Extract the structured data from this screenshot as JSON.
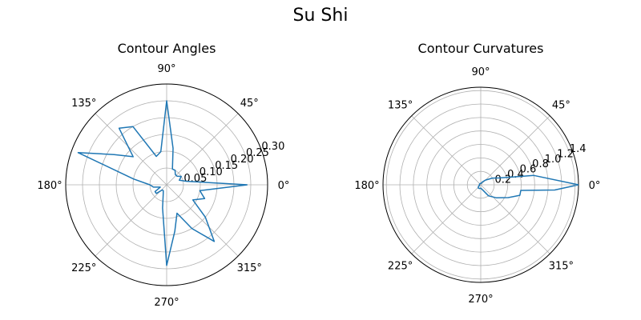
{
  "figure": {
    "suptitle": "Su Shi"
  },
  "chart_data": [
    {
      "type": "line",
      "projection": "polar",
      "title": "Contour Angles",
      "theta_unit": "degrees",
      "theta_tick_labels": [
        "0°",
        "45°",
        "90°",
        "135°",
        "180°",
        "225°",
        "270°",
        "315°"
      ],
      "theta_ticks": [
        0,
        45,
        90,
        135,
        180,
        225,
        270,
        315
      ],
      "r_ticks": [
        0.05,
        0.1,
        0.15,
        0.2,
        0.25,
        0.3
      ],
      "r_tick_labels": [
        "0.05",
        "0.10",
        "0.15",
        "0.20",
        "0.25",
        "0.30"
      ],
      "rlim": [
        0,
        0.3
      ],
      "r_label_angle": 22.5,
      "grid": true,
      "series": [
        {
          "color": "#1f77b4",
          "theta": [
            0,
            10,
            20,
            30,
            40,
            50,
            60,
            70,
            80,
            90,
            100,
            110,
            120,
            130,
            140,
            150,
            160,
            170,
            180,
            190,
            200,
            210,
            220,
            230,
            240,
            250,
            260,
            270,
            280,
            290,
            300,
            310,
            320,
            330,
            340,
            350,
            360
          ],
          "r": [
            0.24,
            0.06,
            0.04,
            0.05,
            0.04,
            0.04,
            0.05,
            0.05,
            0.11,
            0.25,
            0.1,
            0.09,
            0.2,
            0.22,
            0.13,
            0.18,
            0.28,
            0.1,
            0.05,
            0.04,
            0.02,
            0.04,
            0.04,
            0.02,
            0.02,
            0.03,
            0.07,
            0.24,
            0.14,
            0.09,
            0.15,
            0.22,
            0.15,
            0.09,
            0.12,
            0.1,
            0.24
          ]
        }
      ]
    },
    {
      "type": "line",
      "projection": "polar",
      "title": "Contour Curvatures",
      "theta_unit": "degrees",
      "theta_tick_labels": [
        "0°",
        "45°",
        "90°",
        "135°",
        "180°",
        "225°",
        "270°",
        "315°"
      ],
      "theta_ticks": [
        0,
        45,
        90,
        135,
        180,
        225,
        270,
        315
      ],
      "r_ticks": [
        0.2,
        0.4,
        0.6,
        0.8,
        1.0,
        1.2,
        1.4
      ],
      "r_tick_labels": [
        "0.2",
        "0.4",
        "0.6",
        "0.8",
        "1.0",
        "1.2",
        "1.4"
      ],
      "rlim": [
        0,
        1.45
      ],
      "r_label_angle": 22.5,
      "grid": true,
      "series": [
        {
          "color": "#1f77b4",
          "theta": [
            0,
            10,
            20,
            30,
            45,
            60,
            80,
            100,
            120,
            140,
            160,
            180,
            200,
            215,
            230,
            250,
            270,
            290,
            305,
            320,
            335,
            345,
            352,
            356,
            360
          ],
          "r": [
            1.45,
            0.8,
            0.3,
            0.2,
            0.1,
            0.05,
            0.02,
            0.02,
            0.02,
            0.02,
            0.02,
            0.02,
            0.02,
            0.04,
            0.06,
            0.06,
            0.05,
            0.08,
            0.2,
            0.3,
            0.45,
            0.6,
            0.6,
            1.1,
            1.45
          ]
        }
      ]
    }
  ]
}
